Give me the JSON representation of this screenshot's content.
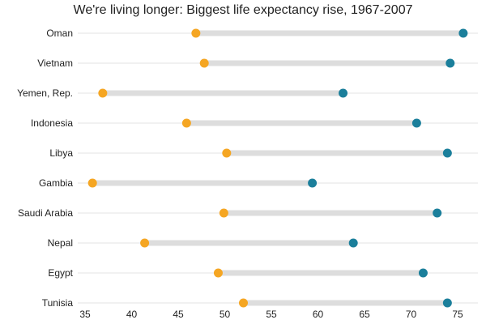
{
  "chart_data": {
    "type": "dumbbell",
    "title": "We're living longer: Biggest life expectancy rise, 1967-2007",
    "xlabel": "",
    "ylabel": "",
    "xlim": [
      34,
      77
    ],
    "xticks": [
      35,
      40,
      45,
      50,
      55,
      60,
      65,
      70,
      75
    ],
    "grid": true,
    "colors": {
      "start": "#F5A623",
      "end": "#1B7F9B",
      "bar": "#DDDDDD",
      "grid": "#E3E3E3"
    },
    "categories": [
      "Oman",
      "Vietnam",
      "Yemen, Rep.",
      "Indonesia",
      "Libya",
      "Gambia",
      "Saudi Arabia",
      "Nepal",
      "Egypt",
      "Tunisia"
    ],
    "series": [
      {
        "values": [
          46.9,
          47.8,
          36.9,
          45.9,
          50.2,
          35.8,
          49.9,
          41.4,
          49.3,
          52.0
        ]
      },
      {
        "values": [
          75.6,
          74.2,
          62.7,
          70.6,
          73.9,
          59.4,
          72.8,
          63.8,
          71.3,
          73.9
        ]
      }
    ]
  }
}
